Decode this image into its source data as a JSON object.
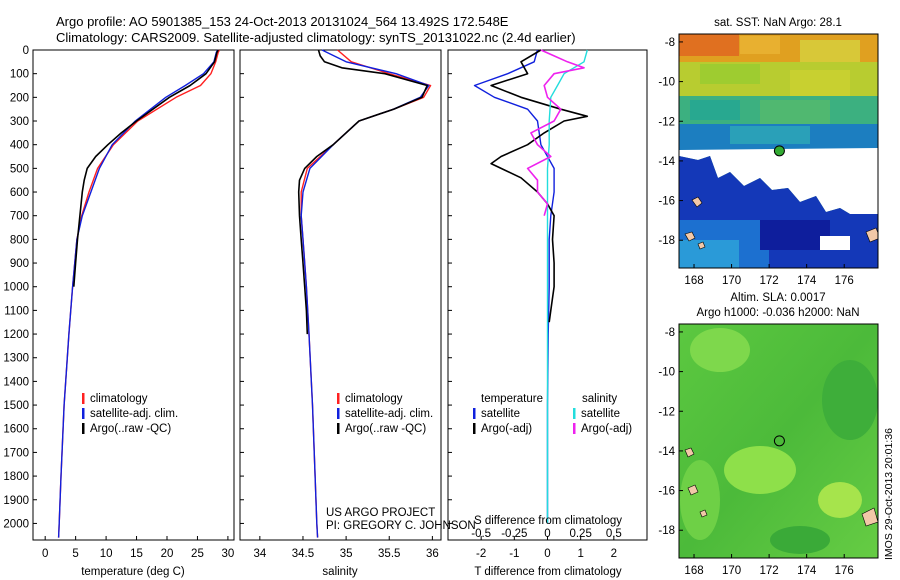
{
  "titles": {
    "line1": "Argo profile: AO 5901385_153 24-Oct-2013 20131024_564 13.492S 172.548E",
    "line2": "Climatology: CARS2009. Satellite-adjusted climatology: synTS_20131022.nc (2.4d earlier)"
  },
  "depth_axis": {
    "ticks": [
      0,
      100,
      200,
      300,
      400,
      500,
      600,
      700,
      800,
      900,
      1000,
      1100,
      1200,
      1300,
      1400,
      1500,
      1600,
      1700,
      1800,
      1900,
      2000
    ],
    "range": [
      0,
      2070
    ]
  },
  "colors": {
    "climatology": "#ff2020",
    "satellite": "#1020dd",
    "argo": "#000000",
    "sal_satellite": "#22dddd",
    "sal_argo": "#ee22ee",
    "map_white": "#ffffff",
    "land": "#f2c8a8"
  },
  "chart_data": [
    {
      "type": "line",
      "name": "temperature",
      "xlabel": "temperature (deg C)",
      "xticks": [
        0,
        5,
        10,
        15,
        20,
        25,
        30
      ],
      "xlim": [
        -2,
        31
      ],
      "ylim": [
        2070,
        0
      ],
      "legend": [
        "climatology",
        "satellite-adj. clim.",
        "Argo(..raw -QC)"
      ],
      "series": [
        {
          "name": "climatology",
          "color": "#ff2020",
          "depth": [
            0,
            10,
            50,
            100,
            150,
            200,
            300,
            400,
            500,
            600,
            700,
            800,
            1000,
            1200,
            1500,
            1800,
            2000,
            2060
          ],
          "values": [
            28.6,
            28.4,
            28.0,
            27.2,
            25.5,
            21.5,
            15.2,
            11.2,
            8.6,
            7.2,
            6.0,
            5.2,
            4.5,
            3.9,
            3.1,
            2.6,
            2.3,
            2.2
          ]
        },
        {
          "name": "satellite",
          "color": "#1020dd",
          "depth": [
            0,
            10,
            50,
            100,
            150,
            200,
            300,
            400,
            500,
            600,
            700,
            800,
            1000,
            1200,
            1500,
            1800,
            2000,
            2060
          ],
          "values": [
            28.3,
            28.1,
            27.7,
            26.0,
            23.0,
            19.8,
            14.8,
            11.0,
            8.9,
            7.5,
            6.1,
            5.2,
            4.5,
            3.9,
            3.1,
            2.6,
            2.3,
            2.2
          ]
        },
        {
          "name": "argo",
          "color": "#000000",
          "depth": [
            0,
            10,
            50,
            100,
            150,
            200,
            300,
            350,
            400,
            450,
            500,
            550,
            600,
            650,
            700,
            800,
            900,
            1000
          ],
          "values": [
            28.4,
            28.2,
            27.8,
            26.4,
            23.8,
            20.4,
            15.0,
            12.5,
            10.3,
            8.3,
            6.9,
            6.4,
            6.1,
            5.9,
            5.7,
            5.3,
            5.0,
            4.7
          ]
        }
      ]
    },
    {
      "type": "line",
      "name": "salinity",
      "xlabel": "salinity",
      "xticks": [
        34,
        34.5,
        35,
        35.5,
        36
      ],
      "xlim": [
        33.77,
        36.1
      ],
      "ylim": [
        2070,
        0
      ],
      "legend": [
        "climatology",
        "satellite-adj. clim.",
        "Argo(..raw -QC)"
      ],
      "series": [
        {
          "name": "climatology",
          "color": "#ff2020",
          "depth": [
            0,
            50,
            100,
            150,
            200,
            250,
            300,
            400,
            500,
            600,
            700,
            800,
            1000,
            1200,
            1500,
            1800,
            2000,
            2060
          ],
          "values": [
            34.9,
            35.06,
            35.5,
            35.98,
            35.9,
            35.55,
            35.15,
            34.85,
            34.55,
            34.48,
            34.48,
            34.5,
            34.54,
            34.57,
            34.61,
            34.64,
            34.66,
            34.67
          ]
        },
        {
          "name": "satellite",
          "color": "#1020dd",
          "depth": [
            0,
            50,
            100,
            150,
            200,
            250,
            300,
            400,
            500,
            600,
            700,
            800,
            1000,
            1200,
            1500,
            1800,
            2000,
            2060
          ],
          "values": [
            34.72,
            35.0,
            35.58,
            35.96,
            35.86,
            35.55,
            35.15,
            34.85,
            34.58,
            34.5,
            34.48,
            34.5,
            34.54,
            34.57,
            34.61,
            34.64,
            34.66,
            34.67
          ]
        },
        {
          "name": "argo",
          "color": "#000000",
          "depth": [
            0,
            25,
            50,
            75,
            100,
            150,
            200,
            250,
            300,
            400,
            450,
            500,
            550,
            600,
            700,
            800,
            900,
            1000,
            1100,
            1200
          ],
          "values": [
            34.68,
            34.7,
            34.75,
            34.95,
            35.45,
            35.94,
            35.88,
            35.55,
            35.15,
            34.85,
            34.66,
            34.52,
            34.46,
            34.45,
            34.46,
            34.48,
            34.5,
            34.52,
            34.54,
            34.55
          ]
        }
      ]
    },
    {
      "type": "line",
      "name": "difference",
      "xlabel": "T difference from climatology",
      "xlabel_top": "S difference from climatology",
      "xticks": [
        -2,
        -1,
        0,
        1,
        2
      ],
      "xticks_top": [
        "-0.5",
        "-0.25",
        "0",
        "0.25",
        "0.5"
      ],
      "xticks_top_positions": [
        -2,
        -1,
        0,
        1,
        2
      ],
      "xlim": [
        -3,
        3
      ],
      "ylim": [
        2070,
        0
      ],
      "legend_left": {
        "title": "temperature",
        "items": [
          "satellite",
          "Argo(-adj)"
        ]
      },
      "legend_right": {
        "title": "salinity",
        "items": [
          "satellite",
          "Argo(-adj)"
        ]
      },
      "series": [
        {
          "name": "temperature satellite",
          "color": "#1020dd",
          "depth": [
            0,
            50,
            100,
            150,
            200,
            250,
            300,
            400,
            500,
            600,
            700,
            800,
            1000,
            1200,
            1500,
            1800,
            2000
          ],
          "values": [
            -0.3,
            -0.4,
            -1.2,
            -2.2,
            -1.6,
            -0.6,
            -0.3,
            -0.2,
            0.2,
            0.2,
            0.1,
            0.05,
            0.05,
            0.02,
            0.0,
            0.0,
            0.0
          ]
        },
        {
          "name": "temperature Argo",
          "color": "#000000",
          "depth": [
            0,
            50,
            100,
            150,
            200,
            250,
            280,
            300,
            350,
            400,
            450,
            480,
            500,
            540,
            600,
            650,
            700,
            800,
            900,
            1000,
            1100,
            1150
          ],
          "values": [
            -0.2,
            -0.8,
            -0.6,
            -1.7,
            -0.8,
            0.4,
            1.2,
            0.5,
            -0.1,
            -0.6,
            -1.4,
            -1.7,
            -1.4,
            -0.8,
            -0.3,
            0.0,
            0.2,
            0.15,
            0.2,
            0.2,
            0.1,
            0.05
          ]
        },
        {
          "name": "salinity satellite",
          "color": "#22dddd",
          "depth": [
            0,
            50,
            100,
            150,
            200,
            300,
            400,
            500,
            800,
            1200,
            1600,
            2000
          ],
          "values": [
            1.2,
            1.1,
            0.5,
            0.3,
            0.1,
            0.05,
            0.05,
            0.0,
            0.0,
            0.0,
            0.0,
            0.0
          ]
        },
        {
          "name": "salinity Argo",
          "color": "#ee22ee",
          "depth": [
            0,
            25,
            50,
            75,
            100,
            150,
            200,
            250,
            300,
            350,
            400,
            450,
            500,
            550,
            600,
            650,
            700
          ],
          "values": [
            -0.2,
            0.2,
            0.6,
            1.1,
            0.2,
            -0.1,
            0.0,
            0.4,
            0.2,
            -0.5,
            -0.3,
            0.1,
            -0.6,
            -0.3,
            -0.3,
            0.0,
            -0.1
          ]
        }
      ]
    },
    {
      "type": "heatmap",
      "name": "sst-map",
      "title": "sat. SST: NaN Argo: 28.1",
      "xticks": [
        168,
        170,
        172,
        174,
        176
      ],
      "yticks": [
        -8,
        -10,
        -12,
        -14,
        -16,
        -18
      ],
      "xlim": [
        167.2,
        177.8
      ],
      "ylim": [
        -19.4,
        -7.6
      ],
      "argo_position": [
        172.548,
        -13.492
      ]
    },
    {
      "type": "heatmap",
      "name": "sla-map",
      "title_line1": "Altim. SLA: 0.0017",
      "title_line2": "Argo h1000: -0.036 h2000: NaN",
      "xticks": [
        168,
        170,
        172,
        174,
        176
      ],
      "yticks": [
        -8,
        -10,
        -12,
        -14,
        -16,
        -18
      ],
      "xlim": [
        167.2,
        177.8
      ],
      "ylim": [
        -19.4,
        -7.6
      ],
      "argo_position": [
        172.548,
        -13.492
      ]
    }
  ],
  "annotations": {
    "project": "US ARGO PROJECT",
    "pi": "PI: GREGORY C. JOHNSON",
    "stamp": "IMOS 29-Oct-2013 20:01:36"
  }
}
